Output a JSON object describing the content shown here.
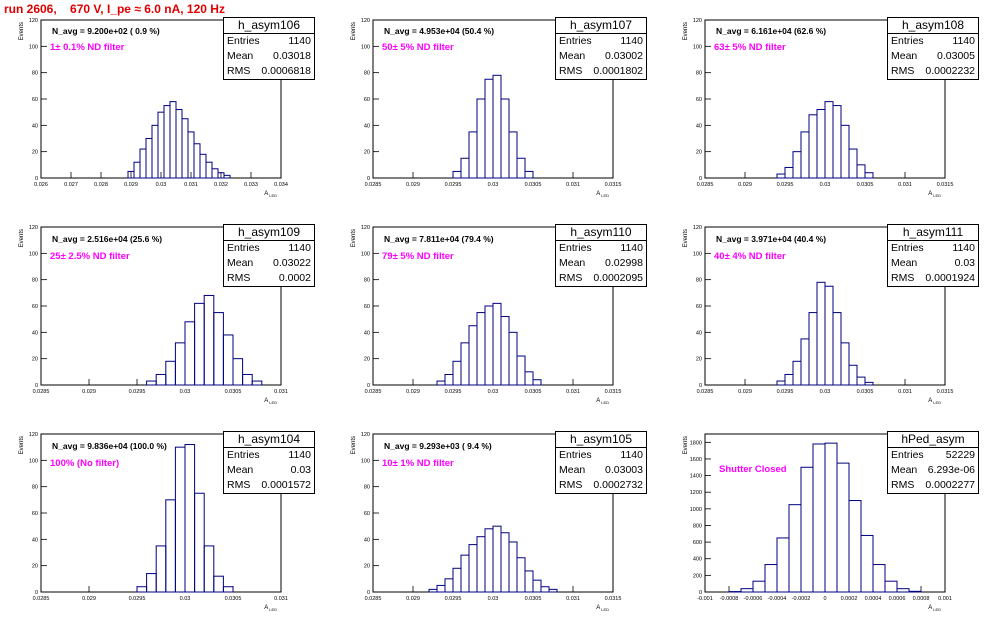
{
  "header": {
    "run": "run 2606,",
    "voltage": "670 V, I_pe ≈ 6.0 nA, 120 Hz"
  },
  "colors": {
    "hist": "#000080",
    "title": "#e00000",
    "filter": "#ff00ff"
  },
  "common": {
    "ylabel": "Events",
    "xlabel": "A",
    "xlabel_sub": "LED"
  },
  "chart_data": [
    {
      "type": "bar",
      "name": "h_asym106",
      "stats": {
        "entries_label": "Entries",
        "entries": "1140",
        "mean_label": "Mean",
        "mean": "0.03018",
        "rms_label": "RMS",
        "rms": "0.0006818"
      },
      "navg": "N_avg = 9.200e+02 ( 0.9 %)",
      "filter": "1± 0.1% ND filter",
      "xlim": [
        0.026,
        0.034
      ],
      "ylim": [
        0,
        120
      ],
      "xticks": [
        "0.026",
        "0.027",
        "0.028",
        "0.029",
        "0.03",
        "0.031",
        "0.032",
        "0.033",
        "0.034"
      ],
      "yticks": [
        "0",
        "20",
        "40",
        "60",
        "80",
        "100",
        "120"
      ],
      "x": [
        0.029,
        0.0292,
        0.0294,
        0.0296,
        0.0298,
        0.03,
        0.0302,
        0.0304,
        0.0306,
        0.0308,
        0.031,
        0.0312,
        0.0314,
        0.0316,
        0.0318,
        0.032,
        0.0322
      ],
      "values": [
        5,
        12,
        22,
        30,
        40,
        50,
        55,
        58,
        52,
        45,
        35,
        26,
        18,
        12,
        7,
        4,
        2
      ]
    },
    {
      "type": "bar",
      "name": "h_asym107",
      "stats": {
        "entries_label": "Entries",
        "entries": "1140",
        "mean_label": "Mean",
        "mean": "0.03002",
        "rms_label": "RMS",
        "rms": "0.0001802"
      },
      "navg": "N_avg = 4.953e+04 (50.4 %)",
      "filter": "50± 5% ND filter",
      "xlim": [
        0.0285,
        0.0315
      ],
      "ylim": [
        0,
        120
      ],
      "xticks": [
        "0.0285",
        "0.029",
        "0.0295",
        "0.03",
        "0.0305",
        "0.031",
        "0.0315"
      ],
      "yticks": [
        "0",
        "20",
        "40",
        "60",
        "80",
        "100",
        "120"
      ],
      "x": [
        0.02955,
        0.02965,
        0.02975,
        0.02985,
        0.02995,
        0.03005,
        0.03015,
        0.03025,
        0.03035,
        0.03045
      ],
      "values": [
        5,
        15,
        35,
        60,
        75,
        78,
        60,
        35,
        15,
        5
      ]
    },
    {
      "type": "bar",
      "name": "h_asym108",
      "stats": {
        "entries_label": "Entries",
        "entries": "1140",
        "mean_label": "Mean",
        "mean": "0.03005",
        "rms_label": "RMS",
        "rms": "0.0002232"
      },
      "navg": "N_avg = 6.161e+04 (62.6 %)",
      "filter": "63± 5% ND filter",
      "xlim": [
        0.0285,
        0.0315
      ],
      "ylim": [
        0,
        120
      ],
      "xticks": [
        "0.0285",
        "0.029",
        "0.0295",
        "0.03",
        "0.0305",
        "0.031",
        "0.0315"
      ],
      "yticks": [
        "0",
        "20",
        "40",
        "60",
        "80",
        "100",
        "120"
      ],
      "x": [
        0.02945,
        0.02955,
        0.02965,
        0.02975,
        0.02985,
        0.02995,
        0.03005,
        0.03015,
        0.03025,
        0.03035,
        0.03045,
        0.03055
      ],
      "values": [
        3,
        8,
        20,
        35,
        48,
        52,
        58,
        55,
        40,
        22,
        10,
        4
      ]
    },
    {
      "type": "bar",
      "name": "h_asym109",
      "stats": {
        "entries_label": "Entries",
        "entries": "1140",
        "mean_label": "Mean",
        "mean": "0.03022",
        "rms_label": "RMS",
        "rms": "0.0002"
      },
      "navg": "N_avg = 2.516e+04 (25.6 %)",
      "filter": "25± 2.5% ND filter",
      "xlim": [
        0.0285,
        0.031
      ],
      "ylim": [
        0,
        120
      ],
      "xticks": [
        "0.0285",
        "0.029",
        "0.0295",
        "0.03",
        "0.0305",
        "0.031"
      ],
      "yticks": [
        "0",
        "20",
        "40",
        "60",
        "80",
        "100",
        "120"
      ],
      "x": [
        0.02965,
        0.02975,
        0.02985,
        0.02995,
        0.03005,
        0.03015,
        0.03025,
        0.03035,
        0.03045,
        0.03055,
        0.03065,
        0.03075
      ],
      "values": [
        3,
        8,
        18,
        32,
        48,
        62,
        68,
        55,
        38,
        20,
        8,
        3
      ]
    },
    {
      "type": "bar",
      "name": "h_asym110",
      "stats": {
        "entries_label": "Entries",
        "entries": "1140",
        "mean_label": "Mean",
        "mean": "0.02998",
        "rms_label": "RMS",
        "rms": "0.0002095"
      },
      "navg": "N_avg = 7.811e+04 (79.4 %)",
      "filter": "79± 5% ND filter",
      "xlim": [
        0.0285,
        0.0315
      ],
      "ylim": [
        0,
        120
      ],
      "xticks": [
        "0.0285",
        "0.029",
        "0.0295",
        "0.03",
        "0.0305",
        "0.031",
        "0.0315"
      ],
      "yticks": [
        "0",
        "20",
        "40",
        "60",
        "80",
        "100",
        "120"
      ],
      "x": [
        0.02935,
        0.02945,
        0.02955,
        0.02965,
        0.02975,
        0.02985,
        0.02995,
        0.03005,
        0.03015,
        0.03025,
        0.03035,
        0.03045,
        0.03055
      ],
      "values": [
        3,
        8,
        18,
        32,
        45,
        55,
        60,
        62,
        52,
        40,
        22,
        10,
        4
      ]
    },
    {
      "type": "bar",
      "name": "h_asym111",
      "stats": {
        "entries_label": "Entries",
        "entries": "1140",
        "mean_label": "Mean",
        "mean": "0.03",
        "rms_label": "RMS",
        "rms": "0.0001924"
      },
      "navg": "N_avg = 3.971e+04 (40.4 %)",
      "filter": "40± 4% ND filter",
      "xlim": [
        0.0285,
        0.0315
      ],
      "ylim": [
        0,
        120
      ],
      "xticks": [
        "0.0285",
        "0.029",
        "0.0295",
        "0.03",
        "0.0305",
        "0.031",
        "0.0315"
      ],
      "yticks": [
        "0",
        "20",
        "40",
        "60",
        "80",
        "100",
        "120"
      ],
      "x": [
        0.02945,
        0.02955,
        0.02965,
        0.02975,
        0.02985,
        0.02995,
        0.03005,
        0.03015,
        0.03025,
        0.03035,
        0.03045,
        0.03055
      ],
      "values": [
        3,
        8,
        18,
        35,
        55,
        78,
        75,
        55,
        32,
        15,
        6,
        2
      ]
    },
    {
      "type": "bar",
      "name": "h_asym104",
      "stats": {
        "entries_label": "Entries",
        "entries": "1140",
        "mean_label": "Mean",
        "mean": "0.03",
        "rms_label": "RMS",
        "rms": "0.0001572"
      },
      "navg": "N_avg = 9.836e+04 (100.0 %)",
      "filter": "100% (No filter)",
      "xlim": [
        0.0285,
        0.031
      ],
      "ylim": [
        0,
        120
      ],
      "xticks": [
        "0.0285",
        "0.029",
        "0.0295",
        "0.03",
        "0.0305",
        "0.031"
      ],
      "yticks": [
        "0",
        "20",
        "40",
        "60",
        "80",
        "100",
        "120"
      ],
      "x": [
        0.02955,
        0.02965,
        0.02975,
        0.02985,
        0.02995,
        0.03005,
        0.03015,
        0.03025,
        0.03035,
        0.03045
      ],
      "values": [
        4,
        14,
        35,
        70,
        110,
        112,
        75,
        35,
        12,
        4
      ]
    },
    {
      "type": "bar",
      "name": "h_asym105",
      "stats": {
        "entries_label": "Entries",
        "entries": "1140",
        "mean_label": "Mean",
        "mean": "0.03003",
        "rms_label": "RMS",
        "rms": "0.0002732"
      },
      "navg": "N_avg = 9.293e+03 ( 9.4 %)",
      "filter": "10± 1% ND filter",
      "xlim": [
        0.0285,
        0.0315
      ],
      "ylim": [
        0,
        120
      ],
      "xticks": [
        "0.0285",
        "0.029",
        "0.0295",
        "0.03",
        "0.0305",
        "0.031",
        "0.0315"
      ],
      "yticks": [
        "0",
        "20",
        "40",
        "60",
        "80",
        "100",
        "120"
      ],
      "x": [
        0.02925,
        0.02935,
        0.02945,
        0.02955,
        0.02965,
        0.02975,
        0.02985,
        0.02995,
        0.03005,
        0.03015,
        0.03025,
        0.03035,
        0.03045,
        0.03055,
        0.03065,
        0.03075
      ],
      "values": [
        2,
        5,
        10,
        18,
        28,
        36,
        42,
        48,
        50,
        45,
        38,
        26,
        16,
        9,
        4,
        2
      ]
    },
    {
      "type": "bar",
      "name": "hPed_asym",
      "stats": {
        "entries_label": "Entries",
        "entries": "52229",
        "mean_label": "Mean",
        "mean": "6.293e-06",
        "rms_label": "RMS",
        "rms": "0.0002277"
      },
      "navg": "",
      "filter": "Shutter Closed",
      "xlim": [
        -0.001,
        0.001
      ],
      "ylim": [
        0,
        1900
      ],
      "xticks": [
        "-0.001",
        "-0.0008",
        "-0.0006",
        "-0.0004",
        "-0.0002",
        "0",
        "0.0002",
        "0.0004",
        "0.0006",
        "0.0008",
        "0.001"
      ],
      "yticks": [
        "0",
        "200",
        "400",
        "600",
        "800",
        "1000",
        "1200",
        "1400",
        "1600",
        "1800"
      ],
      "x": [
        -0.00075,
        -0.00065,
        -0.00055,
        -0.00045,
        -0.00035,
        -0.00025,
        -0.00015,
        -5e-05,
        5e-05,
        0.00015,
        0.00025,
        0.00035,
        0.00045,
        0.00055,
        0.00065,
        0.00075
      ],
      "values": [
        5,
        40,
        130,
        330,
        650,
        1050,
        1500,
        1780,
        1790,
        1550,
        1100,
        680,
        330,
        130,
        40,
        8
      ]
    }
  ]
}
